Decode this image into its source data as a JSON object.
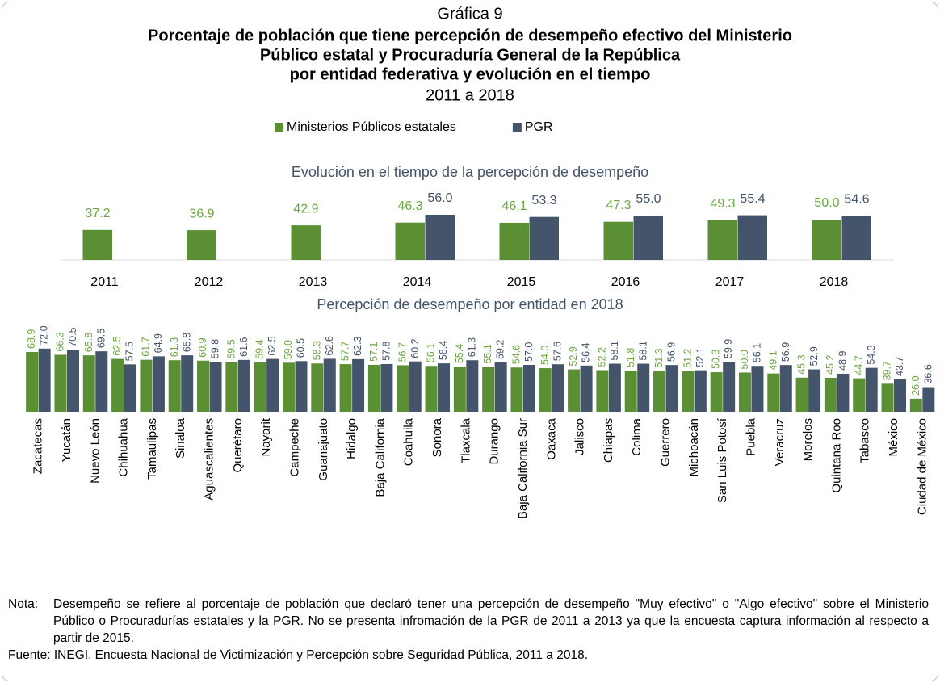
{
  "header": {
    "label": "Gráfica 9",
    "title": [
      "Porcentaje de población que tiene percepción de desempeño efectivo del Ministerio",
      "Público estatal y Procuraduría General de la República",
      "por entidad federativa y evolución en el tiempo"
    ],
    "period": "2011 a 2018"
  },
  "chart_data": [
    {
      "type": "bar",
      "title": "Evolución en el tiempo de la percepción de desempeño",
      "categories": [
        "2011",
        "2012",
        "2013",
        "2014",
        "2015",
        "2016",
        "2017",
        "2018"
      ],
      "ylim": [
        0,
        60
      ],
      "series": [
        {
          "name": "Ministerios Públicos estatales",
          "color": "#5b8f33",
          "label_color": "#6aa843",
          "values": [
            37.2,
            36.9,
            42.9,
            46.3,
            46.1,
            47.3,
            49.3,
            50.0
          ],
          "value_labels": [
            "37.2",
            "36.9",
            "42.9",
            "46.3",
            "46.1",
            "47.3",
            "49.3",
            "50.0"
          ]
        },
        {
          "name": "PGR",
          "color": "#44546a",
          "label_color": "#44546a",
          "values": [
            null,
            null,
            null,
            56.0,
            53.3,
            55.0,
            55.4,
            54.6
          ],
          "value_labels": [
            null,
            null,
            null,
            "56.0",
            "53.3",
            "55.0",
            "55.4",
            "54.6"
          ]
        }
      ]
    },
    {
      "type": "bar",
      "title": "Percepción de desempeño por entidad en 2018",
      "categories": [
        "Zacatecas",
        "Yucatán",
        "Nuevo León",
        "Chihuahua",
        "Tamaulipas",
        "Sinaloa",
        "Aguascalientes",
        "Querétaro",
        "Nayarit",
        "Campeche",
        "Guanajuato",
        "Hidalgo",
        "Baja California",
        "Coahuila",
        "Sonora",
        "Tlaxcala",
        "Durango",
        "Baja California Sur",
        "Oaxaca",
        "Jalisco",
        "Chiapas",
        "Colima",
        "Guerrero",
        "Michoacán",
        "San Luis Potosí",
        "Puebla",
        "Veracruz",
        "Morelos",
        "Quintana Roo",
        "Tabasco",
        "México",
        "Ciudad de México"
      ],
      "ylim": [
        14,
        80
      ],
      "series": [
        {
          "color": "#5b8f33",
          "label_color": "#6aa843",
          "values": [
            68.9,
            66.3,
            65.8,
            62.5,
            61.7,
            61.3,
            60.9,
            59.5,
            59.4,
            59.0,
            58.3,
            57.7,
            57.1,
            56.7,
            56.1,
            55.4,
            55.1,
            54.6,
            54.0,
            52.9,
            52.2,
            51.8,
            51.3,
            51.2,
            50.3,
            50.0,
            49.1,
            45.3,
            45.2,
            44.7,
            39.7,
            26.0
          ],
          "value_labels": [
            "68.9",
            "66.3",
            "65.8",
            "62.5",
            "61.7",
            "61.3",
            "60.9",
            "59.5",
            "59.4",
            "59.0",
            "58.3",
            "57.7",
            "57.1",
            "56.7",
            "56.1",
            "55.4",
            "55.1",
            "54.6",
            "54.0",
            "52.9",
            "52.2",
            "51.8",
            "51.3",
            "51.2",
            "50.3",
            "50.0",
            "49.1",
            "45.3",
            "45.2",
            "44.7",
            "39.7",
            "26.0"
          ]
        },
        {
          "color": "#44546a",
          "label_color": "#44546a",
          "values": [
            72.0,
            70.5,
            69.5,
            57.5,
            64.9,
            65.8,
            59.8,
            61.6,
            62.5,
            60.5,
            62.6,
            62.3,
            57.8,
            60.2,
            58.4,
            61.3,
            59.2,
            57.0,
            57.6,
            56.4,
            58.1,
            58.1,
            56.9,
            52.1,
            59.9,
            56.1,
            56.9,
            52.9,
            48.9,
            54.3,
            43.7,
            36.6
          ],
          "value_labels": [
            "72.0",
            "70.5",
            "69.5",
            "57.5",
            "64.9",
            "65.8",
            "59.8",
            "61.6",
            "62.5",
            "60.5",
            "62.6",
            "62.3",
            "57.8",
            "60.2",
            "58.4",
            "61.3",
            "59.2",
            "57.0",
            "57.6",
            "56.4",
            "58.1",
            "58.1",
            "56.9",
            "52.1",
            "59.9",
            "56.1",
            "56.9",
            "52.9",
            "48.9",
            "54.3",
            "43.7",
            "36.6"
          ]
        }
      ]
    }
  ],
  "notes": {
    "label": "Nota:",
    "text": "Desempeño se refiere al porcentaje de población que declaró tener una percepción de desempeño \"Muy efectivo\" o \"Algo efectivo\" sobre el Ministerio Público o Procuradurías estatales y la PGR. No se presenta infromación de la PGR de 2011 a 2013 ya que la encuesta captura información al respecto a partir de 2015."
  },
  "source": "Fuente: INEGI. Encuesta Nacional de Victimización y Percepción sobre Seguridad Pública, 2011 a 2018."
}
